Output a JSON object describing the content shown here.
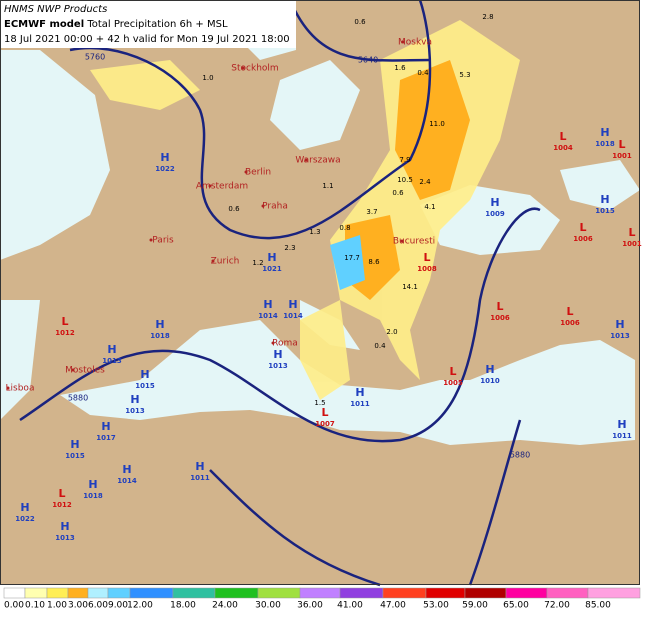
{
  "header": {
    "source": "HNMS NWP Products",
    "model": "ECMWF model",
    "product": "Total Precipitation 6h + MSL",
    "valid": "18 Jul 2021 00:00 + 42 h valid for Mon 19 Jul 2021 18:00"
  },
  "colorbar": {
    "labels": [
      "0.00",
      "0.10",
      "1.00",
      "3.00",
      "6.00",
      "9.00",
      "12.00",
      "18.00",
      "24.00",
      "30.00",
      "36.00",
      "41.00",
      "47.00",
      "53.00",
      "59.00",
      "65.00",
      "72.00",
      "85.00"
    ],
    "colors": [
      "#ffffff",
      "#ffffb0",
      "#ffee55",
      "#ffb020",
      "#b0f0ff",
      "#60d0ff",
      "#3090ff",
      "#30c0a0",
      "#20c020",
      "#a0e040",
      "#c080ff",
      "#9040e0",
      "#ff4020",
      "#e00000",
      "#b00000",
      "#ff00a0",
      "#ff60c0",
      "#ffa0e0"
    ]
  },
  "cities": [
    "Moskva",
    "Stockholm",
    "Warszawa",
    "Berlin",
    "Amsterdam",
    "Praha",
    "Paris",
    "Zurich",
    "Bucuresti",
    "Roma",
    "Mostoles",
    "Lisboa"
  ],
  "pressure_systems": [
    {
      "letter": "H",
      "value": "1022"
    },
    {
      "letter": "H",
      "value": "1018"
    },
    {
      "letter": "L",
      "value": "1004"
    },
    {
      "letter": "L",
      "value": "1001"
    },
    {
      "letter": "H",
      "value": "1009"
    },
    {
      "letter": "H",
      "value": "1015"
    },
    {
      "letter": "L",
      "value": "1006"
    },
    {
      "letter": "L",
      "value": "1001"
    },
    {
      "letter": "L",
      "value": "1008"
    },
    {
      "letter": "H",
      "value": "1021"
    },
    {
      "letter": "H",
      "value": "1014"
    },
    {
      "letter": "H",
      "value": "1014"
    },
    {
      "letter": "L",
      "value": "1006"
    },
    {
      "letter": "L",
      "value": "1006"
    },
    {
      "letter": "L",
      "value": "1012"
    },
    {
      "letter": "H",
      "value": "1018"
    },
    {
      "letter": "H",
      "value": "1013"
    },
    {
      "letter": "H",
      "value": "1013"
    },
    {
      "letter": "H",
      "value": "1013"
    },
    {
      "letter": "L",
      "value": "1005"
    },
    {
      "letter": "H",
      "value": "1010"
    },
    {
      "letter": "H",
      "value": "1015"
    },
    {
      "letter": "H",
      "value": "1013"
    },
    {
      "letter": "H",
      "value": "1011"
    },
    {
      "letter": "L",
      "value": "1007"
    },
    {
      "letter": "H",
      "value": "1017"
    },
    {
      "letter": "H",
      "value": "1011"
    },
    {
      "letter": "H",
      "value": "1015"
    },
    {
      "letter": "H",
      "value": "1014"
    },
    {
      "letter": "H",
      "value": "1011"
    },
    {
      "letter": "H",
      "value": "1018"
    },
    {
      "letter": "L",
      "value": "1012"
    },
    {
      "letter": "H",
      "value": "1022"
    },
    {
      "letter": "H",
      "value": "1013"
    }
  ],
  "geopotential_labels": [
    "5760",
    "5640",
    "5880",
    "5880"
  ],
  "precip_values": [
    "2.8",
    "0.6",
    "5.3",
    "1.6",
    "0.4",
    "11.0",
    "7.9",
    "10.5",
    "2.4",
    "0.6",
    "3.7",
    "4.1",
    "17.7",
    "8.6",
    "14.1",
    "0.8",
    "2.0",
    "0.4",
    "1.5",
    "1.0",
    "1.1",
    "0.6",
    "1.2",
    "2.3",
    "1.3"
  ]
}
